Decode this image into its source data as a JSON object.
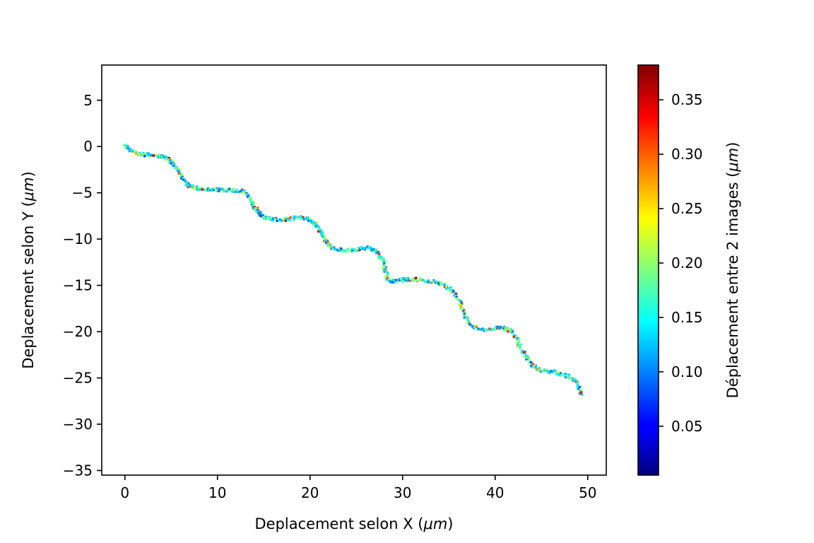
{
  "chart_data": {
    "type": "scatter",
    "title": "",
    "xlabel_prefix": "Deplacement selon X (",
    "xlabel_unit": "μm",
    "xlabel_suffix": ")",
    "ylabel_prefix": "Deplacement selon Y (",
    "ylabel_unit": "μm",
    "ylabel_suffix": ")",
    "xlim": [
      -2.5,
      52
    ],
    "ylim": [
      -35.5,
      8.8
    ],
    "x_ticks": [
      0,
      10,
      20,
      30,
      40,
      50
    ],
    "x_tick_labels": [
      "0",
      "10",
      "20",
      "30",
      "40",
      "50"
    ],
    "y_ticks": [
      5,
      0,
      -5,
      -10,
      -15,
      -20,
      -25,
      -30,
      -35
    ],
    "y_tick_labels": [
      "5",
      "0",
      "−5",
      "−10",
      "−15",
      "−20",
      "−25",
      "−30",
      "−35"
    ],
    "grid": false,
    "colormap": "jet",
    "colorbar": {
      "label_prefix": "Déplacement entre 2 images (",
      "label_unit": "μm",
      "label_suffix": ")",
      "range": [
        0.005,
        0.382
      ],
      "ticks": [
        0.05,
        0.1,
        0.15,
        0.2,
        0.25,
        0.3,
        0.35
      ],
      "tick_labels": [
        "0.05",
        "0.10",
        "0.15",
        "0.20",
        "0.25",
        "0.30",
        "0.35"
      ]
    },
    "trajectory": {
      "description_of_values": "point trajectory, each point colored by displacement",
      "start": [
        0,
        0
      ],
      "end": [
        49.4,
        -26.7
      ],
      "waypoints": [
        [
          0,
          0
        ],
        [
          1.5,
          -0.8
        ],
        [
          3.5,
          -1.0
        ],
        [
          5,
          -1.6
        ],
        [
          6,
          -3.0
        ],
        [
          7,
          -4.3
        ],
        [
          9,
          -4.6
        ],
        [
          11,
          -4.7
        ],
        [
          13,
          -5.0
        ],
        [
          14,
          -6.5
        ],
        [
          15,
          -7.6
        ],
        [
          17,
          -7.9
        ],
        [
          19,
          -7.7
        ],
        [
          20.5,
          -8.3
        ],
        [
          21.5,
          -9.8
        ],
        [
          22.5,
          -11.0
        ],
        [
          24.5,
          -11.2
        ],
        [
          26.5,
          -11.0
        ],
        [
          27.8,
          -12.2
        ],
        [
          28.5,
          -14.4
        ],
        [
          30,
          -14.4
        ],
        [
          32,
          -14.4
        ],
        [
          34.5,
          -15.0
        ],
        [
          36,
          -16.5
        ],
        [
          37,
          -18.8
        ],
        [
          38.5,
          -19.8
        ],
        [
          40.5,
          -19.6
        ],
        [
          42,
          -20.2
        ],
        [
          43,
          -22.2
        ],
        [
          44.5,
          -24.0
        ],
        [
          46.5,
          -24.4
        ],
        [
          48.5,
          -25.2
        ],
        [
          49.4,
          -26.7
        ]
      ]
    }
  }
}
